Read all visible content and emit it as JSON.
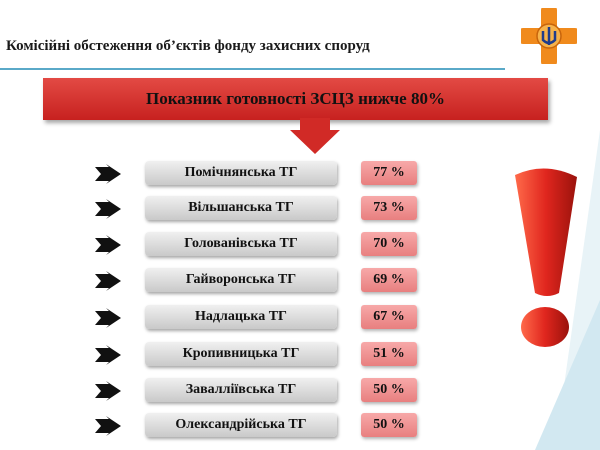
{
  "header": {
    "title": "Комісійні обстеження об’єктів фонду захисних споруд"
  },
  "banner": {
    "text": "Показник готовності ЗСЦЗ нижче 80%"
  },
  "rows": [
    {
      "name": "Помічнянська ТГ",
      "percent": "77 %"
    },
    {
      "name": "Вільшанська ТГ",
      "percent": "73 %"
    },
    {
      "name": "Голованівська ТГ",
      "percent": "70 %"
    },
    {
      "name": "Гайворонська ТГ",
      "percent": "69 %"
    },
    {
      "name": "Надлацька ТГ",
      "percent": "67 %"
    },
    {
      "name": "Кропивницька ТГ",
      "percent": "51 %"
    },
    {
      "name": "Завалліївська ТГ",
      "percent": "50 %"
    },
    {
      "name": "Олександрійська ТГ",
      "percent": "50 %"
    }
  ],
  "colors": {
    "banner": "#d7312d",
    "percent_box": "#f29595",
    "name_box": "#dcdcdc",
    "accent_line": "#5aa9c8",
    "emblem": "#f08a1c"
  },
  "icons": {
    "emblem": "emergency-service-emblem-icon",
    "row_arrow": "black-arrow-icon",
    "exclamation": "exclamation-mark-icon",
    "banner_arrow": "down-arrow-icon"
  }
}
